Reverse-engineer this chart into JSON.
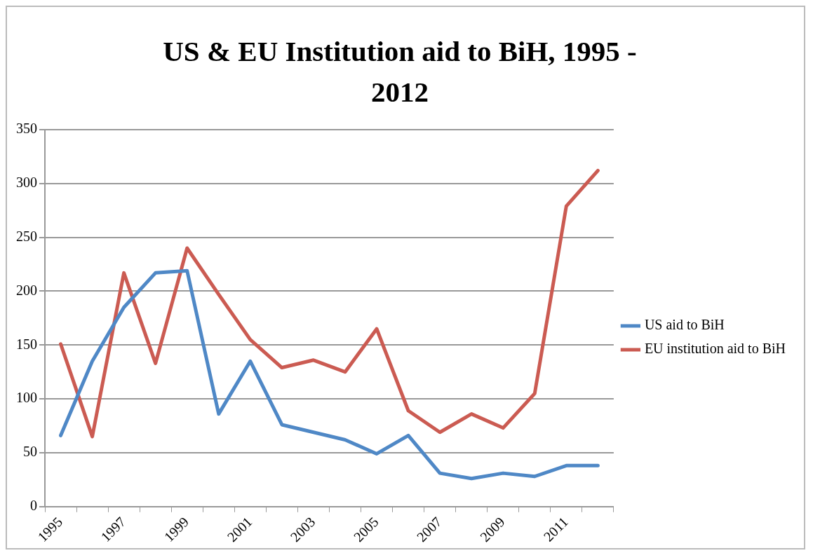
{
  "chart_data": {
    "type": "line",
    "title": "US & EU Institution aid to BiH, 1995 - 2012",
    "categories": [
      "1995",
      null,
      "1997",
      null,
      "1999",
      null,
      "2001",
      null,
      "2003",
      null,
      "2005",
      null,
      "2007",
      null,
      "2009",
      null,
      "2011",
      null
    ],
    "series": [
      {
        "name": "US aid to BiH",
        "color": "#4f88c6",
        "values": [
          66,
          135,
          185,
          217,
          219,
          86,
          135,
          76,
          69,
          62,
          49,
          66,
          31,
          26,
          31,
          28,
          38,
          38
        ]
      },
      {
        "name": "EU institution aid to BiH",
        "color": "#cb5b52",
        "values": [
          151,
          65,
          217,
          133,
          240,
          197,
          155,
          129,
          136,
          125,
          165,
          89,
          69,
          86,
          73,
          105,
          279,
          312
        ]
      }
    ],
    "ylim": [
      0,
      350
    ],
    "yticks": [
      0,
      50,
      100,
      150,
      200,
      250,
      300,
      350
    ],
    "grid": "y",
    "legend": "right",
    "marker": "none",
    "line_style": "solid"
  }
}
